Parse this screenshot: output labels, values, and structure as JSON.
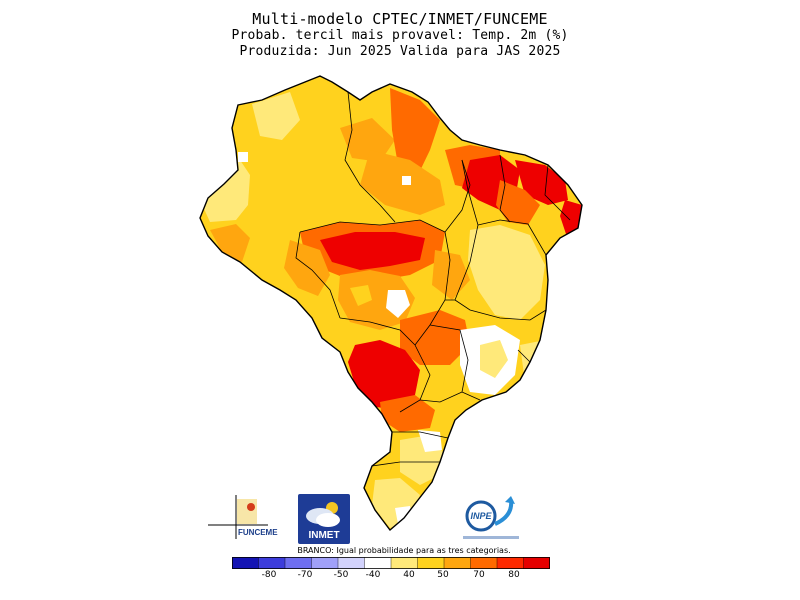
{
  "header": {
    "title": "Multi-modelo CPTEC/INMET/FUNCEME",
    "subtitle": "Probab. tercil mais provavel: Temp. 2m (%)",
    "produced": "Produzida: Jun 2025   Valida para JAS 2025"
  },
  "map": {
    "shaded_variable": "Probabilidade do tercil mais provavel",
    "category_colors": {
      "branco": "#ffffff",
      "40": "#ffe97a",
      "50": "#ffd21e",
      "60": "#ffa60f",
      "70": "#ff6a00",
      "80": "#ee0000"
    }
  },
  "logos": {
    "funceme": "FUNCEME",
    "inmet": "INMET",
    "inpe": "INPE"
  },
  "note": "BRANCO: Igual probabilidade para as tres categorias.",
  "colorbar": {
    "ticks": [
      "-80",
      "-70",
      "-50",
      "-40",
      "40",
      "50",
      "70",
      "80"
    ],
    "colors": [
      "#1414b4",
      "#3c3cdc",
      "#6e6ef0",
      "#a0a0f8",
      "#d2d2fc",
      "#ffffff",
      "#ffe97a",
      "#ffd21e",
      "#ffa60f",
      "#ff6a00",
      "#ff2a00",
      "#e60000"
    ]
  }
}
